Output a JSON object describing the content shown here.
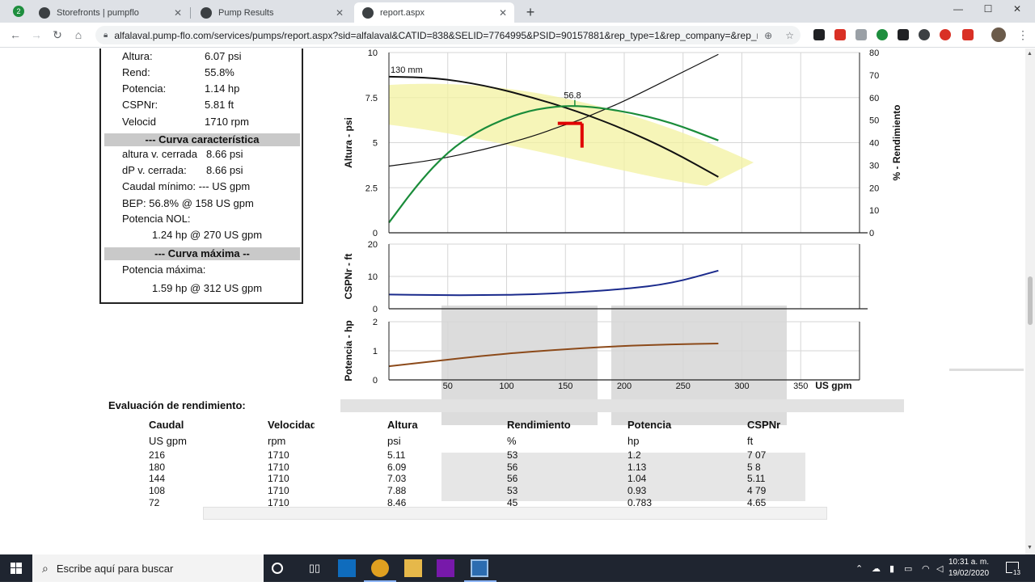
{
  "browser": {
    "tabs": [
      {
        "label": "Storefronts | pumpflo",
        "active": false
      },
      {
        "label": "Pump Results",
        "active": false
      },
      {
        "label": "report.aspx",
        "active": true
      }
    ],
    "url": "alfalaval.pump-flo.com/services/pumps/report.aspx?sid=alfalaval&CATID=838&SELID=7764995&PSID=90157881&rep_type=1&rep_company=&rep_n...",
    "badge_count": "2"
  },
  "info": {
    "rows": [
      {
        "k": "Altura:",
        "v": "6.07 psi"
      },
      {
        "k": "Rend:",
        "v": "55.8%"
      },
      {
        "k": "Potencia:",
        "v": "1.14 hp"
      },
      {
        "k": "CSPNr:",
        "v": "5.81 ft"
      },
      {
        "k": "Velocid",
        "v": "1710 rpm"
      }
    ],
    "section1": "--- Curva característica",
    "curve_rows": [
      {
        "k": "altura v. cerrada",
        "v": "8.66 psi"
      },
      {
        "k": "dP v. cerrada:",
        "v": "8.66 psi"
      }
    ],
    "caudal_minimo": "Caudal mínimo: --- US gpm",
    "bep": "BEP: 56.8% @ 158 US gpm",
    "potencia_nol_label": "Potencia NOL:",
    "potencia_nol_value": "1.24 hp @ 270 US gpm",
    "section2": "--- Curva máxima --",
    "potencia_max_label": "Potencia máxima:",
    "potencia_max_value": "1.59 hp @ 312 US gpm"
  },
  "chart_data": {
    "type": "line",
    "impeller_label": "130 mm",
    "bep_label": "56.8",
    "x_unit": "US gpm",
    "x_ticks": [
      50,
      100,
      150,
      200,
      250,
      300,
      350
    ],
    "panels": [
      {
        "name": "head",
        "ylabel": "Altura - psi",
        "ylim": [
          0,
          10
        ],
        "y_ticks": [
          "10",
          "7.5",
          "5",
          "2.5",
          "0"
        ],
        "y2label": "% - Rendimiento",
        "y2lim": [
          0,
          80
        ],
        "y2_ticks": [
          "80",
          "70",
          "60",
          "50",
          "40",
          "30",
          "20",
          "10",
          "0"
        ],
        "series": [
          {
            "x": [
              0,
              40,
              80,
              120,
              160,
              200,
              240,
              280
            ],
            "y": [
              8.66,
              8.6,
              8.2,
              7.55,
              6.75,
              5.75,
              4.55,
              3.1
            ],
            "color": "#111111"
          },
          {
            "x": [
              0,
              40,
              80,
              120,
              150,
              160,
              180,
              200,
              240,
              280
            ],
            "y": [
              3.7,
              4.05,
              4.6,
              5.3,
              6.0,
              6.2,
              6.75,
              7.3,
              8.6,
              9.9
            ],
            "color": "#111111"
          },
          {
            "x": [
              0,
              25,
              50,
              75,
              100,
              125,
              158,
              200,
              240,
              280
            ],
            "y2": [
              4.5,
              22,
              36,
              45,
              51,
              55,
              56.8,
              54,
              49,
              41
            ],
            "color": "#1a8c3a"
          }
        ],
        "operating_point": {
          "x": 160,
          "y": 6.07
        }
      },
      {
        "name": "npsh",
        "ylabel": "CSPNr - ft",
        "ylim": [
          0,
          20
        ],
        "y_ticks": [
          "20",
          "10",
          "0"
        ],
        "series": [
          {
            "x": [
              0,
              40,
              80,
              120,
              160,
              200,
              240,
              280
            ],
            "y": [
              4.4,
              4.2,
              4.2,
              4.4,
              5.1,
              6.1,
              7.8,
              11.8
            ],
            "color": "#1a2a8c"
          }
        ]
      },
      {
        "name": "power",
        "ylabel": "Potencia - hp",
        "ylim": [
          0,
          2
        ],
        "y_ticks": [
          "2",
          "1",
          "0"
        ],
        "series": [
          {
            "x": [
              0,
              40,
              80,
              120,
              160,
              200,
              240,
              280
            ],
            "y": [
              0.47,
              0.65,
              0.83,
              0.97,
              1.08,
              1.17,
              1.22,
              1.25
            ],
            "color": "#8c4a1a"
          }
        ]
      }
    ]
  },
  "performance": {
    "title": "Evaluación de rendimiento:",
    "headers": [
      "Caudal",
      "Velocidad",
      "Altura",
      "Rendimiento",
      "Potencia",
      "CSPNr"
    ],
    "units": [
      "US gpm",
      "rpm",
      "psi",
      "%",
      "hp",
      "ft"
    ],
    "rows": [
      [
        "216",
        "1710",
        "5.11",
        "53",
        "1.2",
        "7 07"
      ],
      [
        "180",
        "1710",
        "6.09",
        "56",
        "1.13",
        "5 8"
      ],
      [
        "144",
        "1710",
        "7.03",
        "56",
        "1.04",
        "5.11"
      ],
      [
        "108",
        "1710",
        "7.88",
        "53",
        "0.93",
        "4 79"
      ],
      [
        "72",
        "1710",
        "8.46",
        "45",
        "0.783",
        "4.65"
      ]
    ]
  },
  "taskbar": {
    "search_placeholder": "Escribe aquí para buscar",
    "time": "10:31 a. m.",
    "date": "19/02/2020",
    "notifications": "13"
  }
}
